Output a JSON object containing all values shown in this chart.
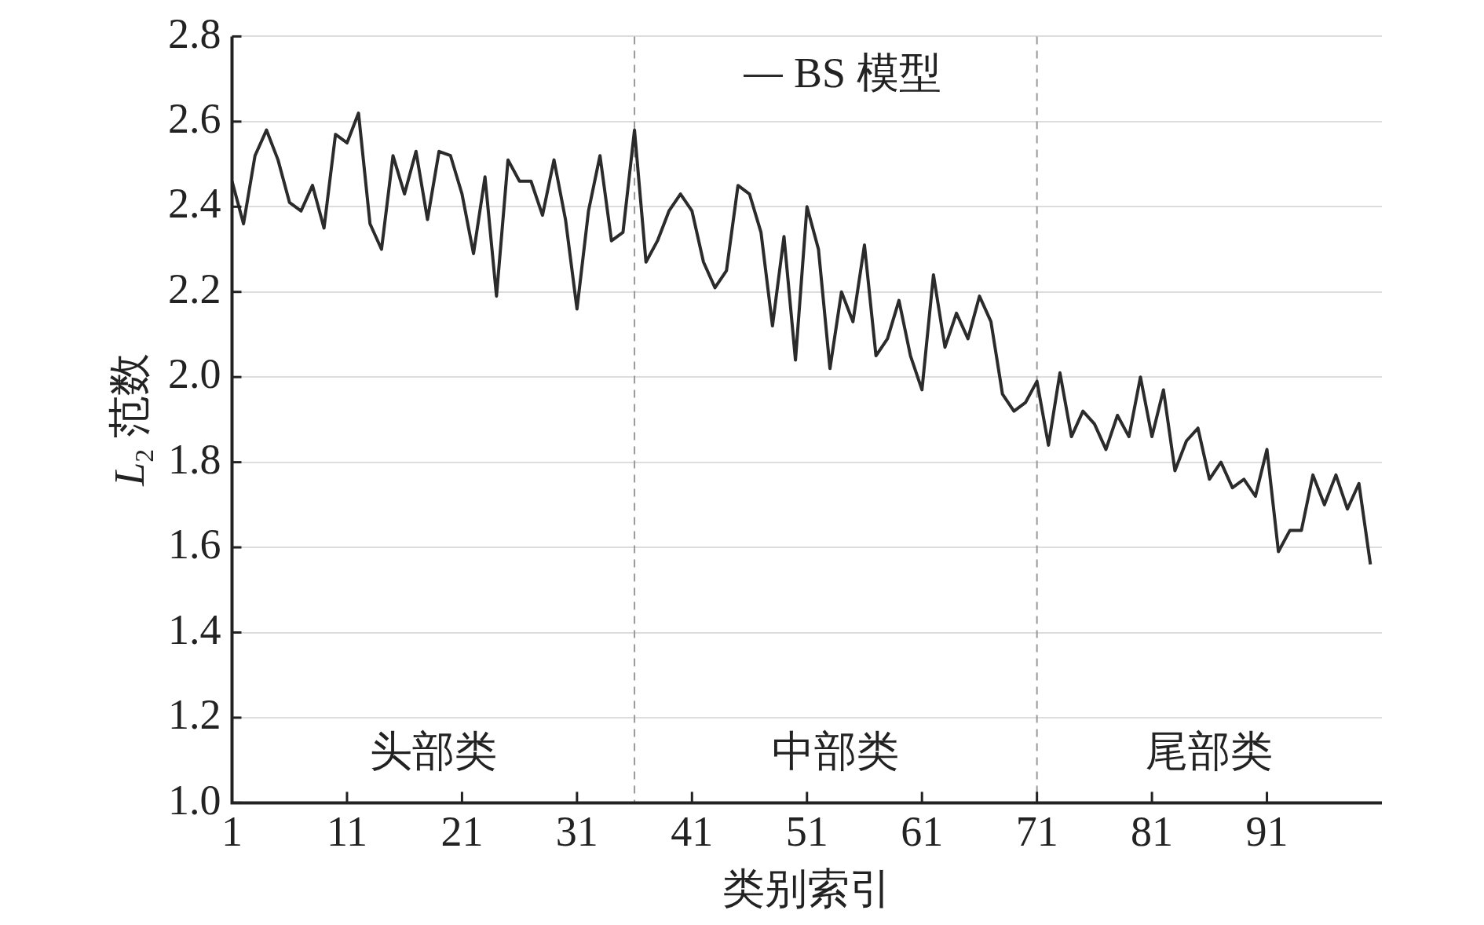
{
  "chart_data": {
    "type": "line",
    "xlabel": "类别索引",
    "ylabel": "L$_{2}$ 范数",
    "x": [
      1,
      2,
      3,
      4,
      5,
      6,
      7,
      8,
      9,
      10,
      11,
      12,
      13,
      14,
      15,
      16,
      17,
      18,
      19,
      20,
      21,
      22,
      23,
      24,
      25,
      26,
      27,
      28,
      29,
      30,
      31,
      32,
      33,
      34,
      35,
      36,
      37,
      38,
      39,
      40,
      41,
      42,
      43,
      44,
      45,
      46,
      47,
      48,
      49,
      50,
      51,
      52,
      53,
      54,
      55,
      56,
      57,
      58,
      59,
      60,
      61,
      62,
      63,
      64,
      65,
      66,
      67,
      68,
      69,
      70,
      71,
      72,
      73,
      74,
      75,
      76,
      77,
      78,
      79,
      80,
      81,
      82,
      83,
      84,
      85,
      86,
      87,
      88,
      89,
      90,
      91,
      92,
      93,
      94,
      95,
      96,
      97,
      98,
      99,
      100
    ],
    "series": [
      {
        "name": "BS 模型",
        "color": "#2b2b2b",
        "values": [
          2.46,
          2.36,
          2.52,
          2.58,
          2.51,
          2.41,
          2.39,
          2.45,
          2.35,
          2.57,
          2.55,
          2.62,
          2.36,
          2.3,
          2.52,
          2.43,
          2.53,
          2.37,
          2.53,
          2.52,
          2.43,
          2.29,
          2.47,
          2.19,
          2.51,
          2.46,
          2.46,
          2.38,
          2.51,
          2.37,
          2.16,
          2.39,
          2.52,
          2.32,
          2.34,
          2.58,
          2.27,
          2.32,
          2.39,
          2.43,
          2.39,
          2.27,
          2.21,
          2.25,
          2.45,
          2.43,
          2.34,
          2.12,
          2.33,
          2.04,
          2.4,
          2.3,
          2.02,
          2.2,
          2.13,
          2.31,
          2.05,
          2.09,
          2.18,
          2.05,
          1.97,
          2.24,
          2.07,
          2.15,
          2.09,
          2.19,
          2.13,
          1.96,
          1.92,
          1.94,
          1.99,
          1.84,
          2.01,
          1.86,
          1.92,
          1.89,
          1.83,
          1.91,
          1.86,
          2.0,
          1.86,
          1.97,
          1.78,
          1.85,
          1.88,
          1.76,
          1.8,
          1.74,
          1.76,
          1.72,
          1.83,
          1.59,
          1.64,
          1.64,
          1.77,
          1.7,
          1.77,
          1.69,
          1.75,
          1.56
        ]
      }
    ],
    "xlim": [
      1,
      101
    ],
    "xticks": [
      1,
      11,
      21,
      31,
      41,
      51,
      61,
      71,
      81,
      91
    ],
    "ylim": [
      1.0,
      2.8
    ],
    "yticks": [
      {
        "value": 1.0,
        "label": "1.0"
      },
      {
        "value": 1.2,
        "label": "1.2"
      },
      {
        "value": 1.4,
        "label": "1.4"
      },
      {
        "value": 1.6,
        "label": "1.6"
      },
      {
        "value": 1.8,
        "label": "1.8"
      },
      {
        "value": 2.0,
        "label": "2.0"
      },
      {
        "value": 2.2,
        "label": "2.2"
      },
      {
        "value": 2.4,
        "label": "2.4"
      },
      {
        "value": 2.6,
        "label": "2.6"
      },
      {
        "value": 2.8,
        "label": "2.8"
      }
    ],
    "grid": "y",
    "legend": "top",
    "marker": "none",
    "line_style": "solid",
    "ref_lines": [
      {
        "axis": "x",
        "value": 36,
        "color": "#999999",
        "line_style": "dashed"
      },
      {
        "axis": "x",
        "value": 71,
        "color": "#999999",
        "line_style": "dashed"
      }
    ],
    "annotations": [
      "头部类",
      "中部类",
      "尾部类"
    ]
  }
}
